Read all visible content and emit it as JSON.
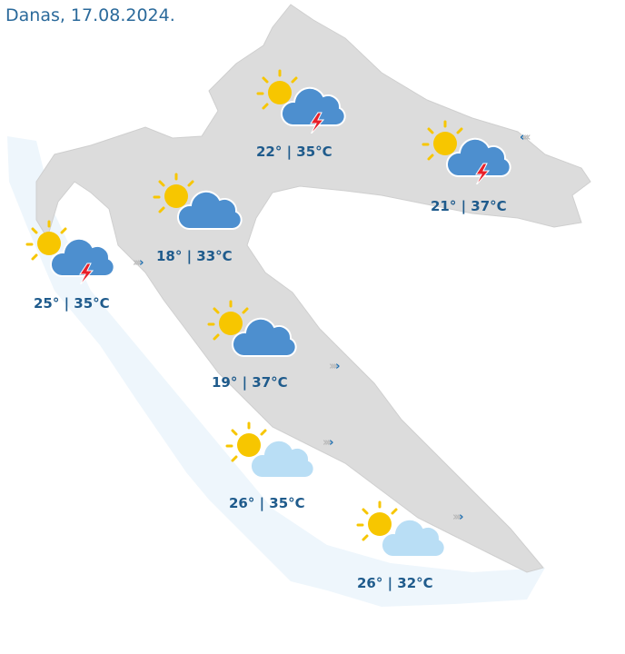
{
  "header": {
    "title": "Danas, 17.08.2024."
  },
  "colors": {
    "land": "#dcdcdc",
    "sea": "#eef6fc",
    "title": "#2b6a9b",
    "label": "#1f5b8c",
    "sun": "#f7c600",
    "cloud_dark": "#4d8fcf",
    "cloud_light": "#b9def5",
    "lightning": "#e8202a"
  },
  "forecasts": [
    {
      "icon": "sun-cloud-thunder",
      "label": "22° | 35°C"
    },
    {
      "icon": "sun-cloud-thunder",
      "label": "21° | 37°C"
    },
    {
      "icon": "sun-cloud",
      "label": "18° | 33°C"
    },
    {
      "icon": "sun-cloud-thunder",
      "label": "25° | 35°C"
    },
    {
      "icon": "sun-cloud",
      "label": "19° | 37°C"
    },
    {
      "icon": "sun-light-cloud",
      "label": "26° | 35°C"
    },
    {
      "icon": "sun-light-cloud",
      "label": "26° | 32°C"
    }
  ],
  "wind": [
    {
      "icon": "wind-arrow-left"
    },
    {
      "icon": "wind-arrow-right"
    },
    {
      "icon": "wind-arrow-right"
    },
    {
      "icon": "wind-arrow-right"
    },
    {
      "icon": "wind-arrow-right"
    }
  ]
}
